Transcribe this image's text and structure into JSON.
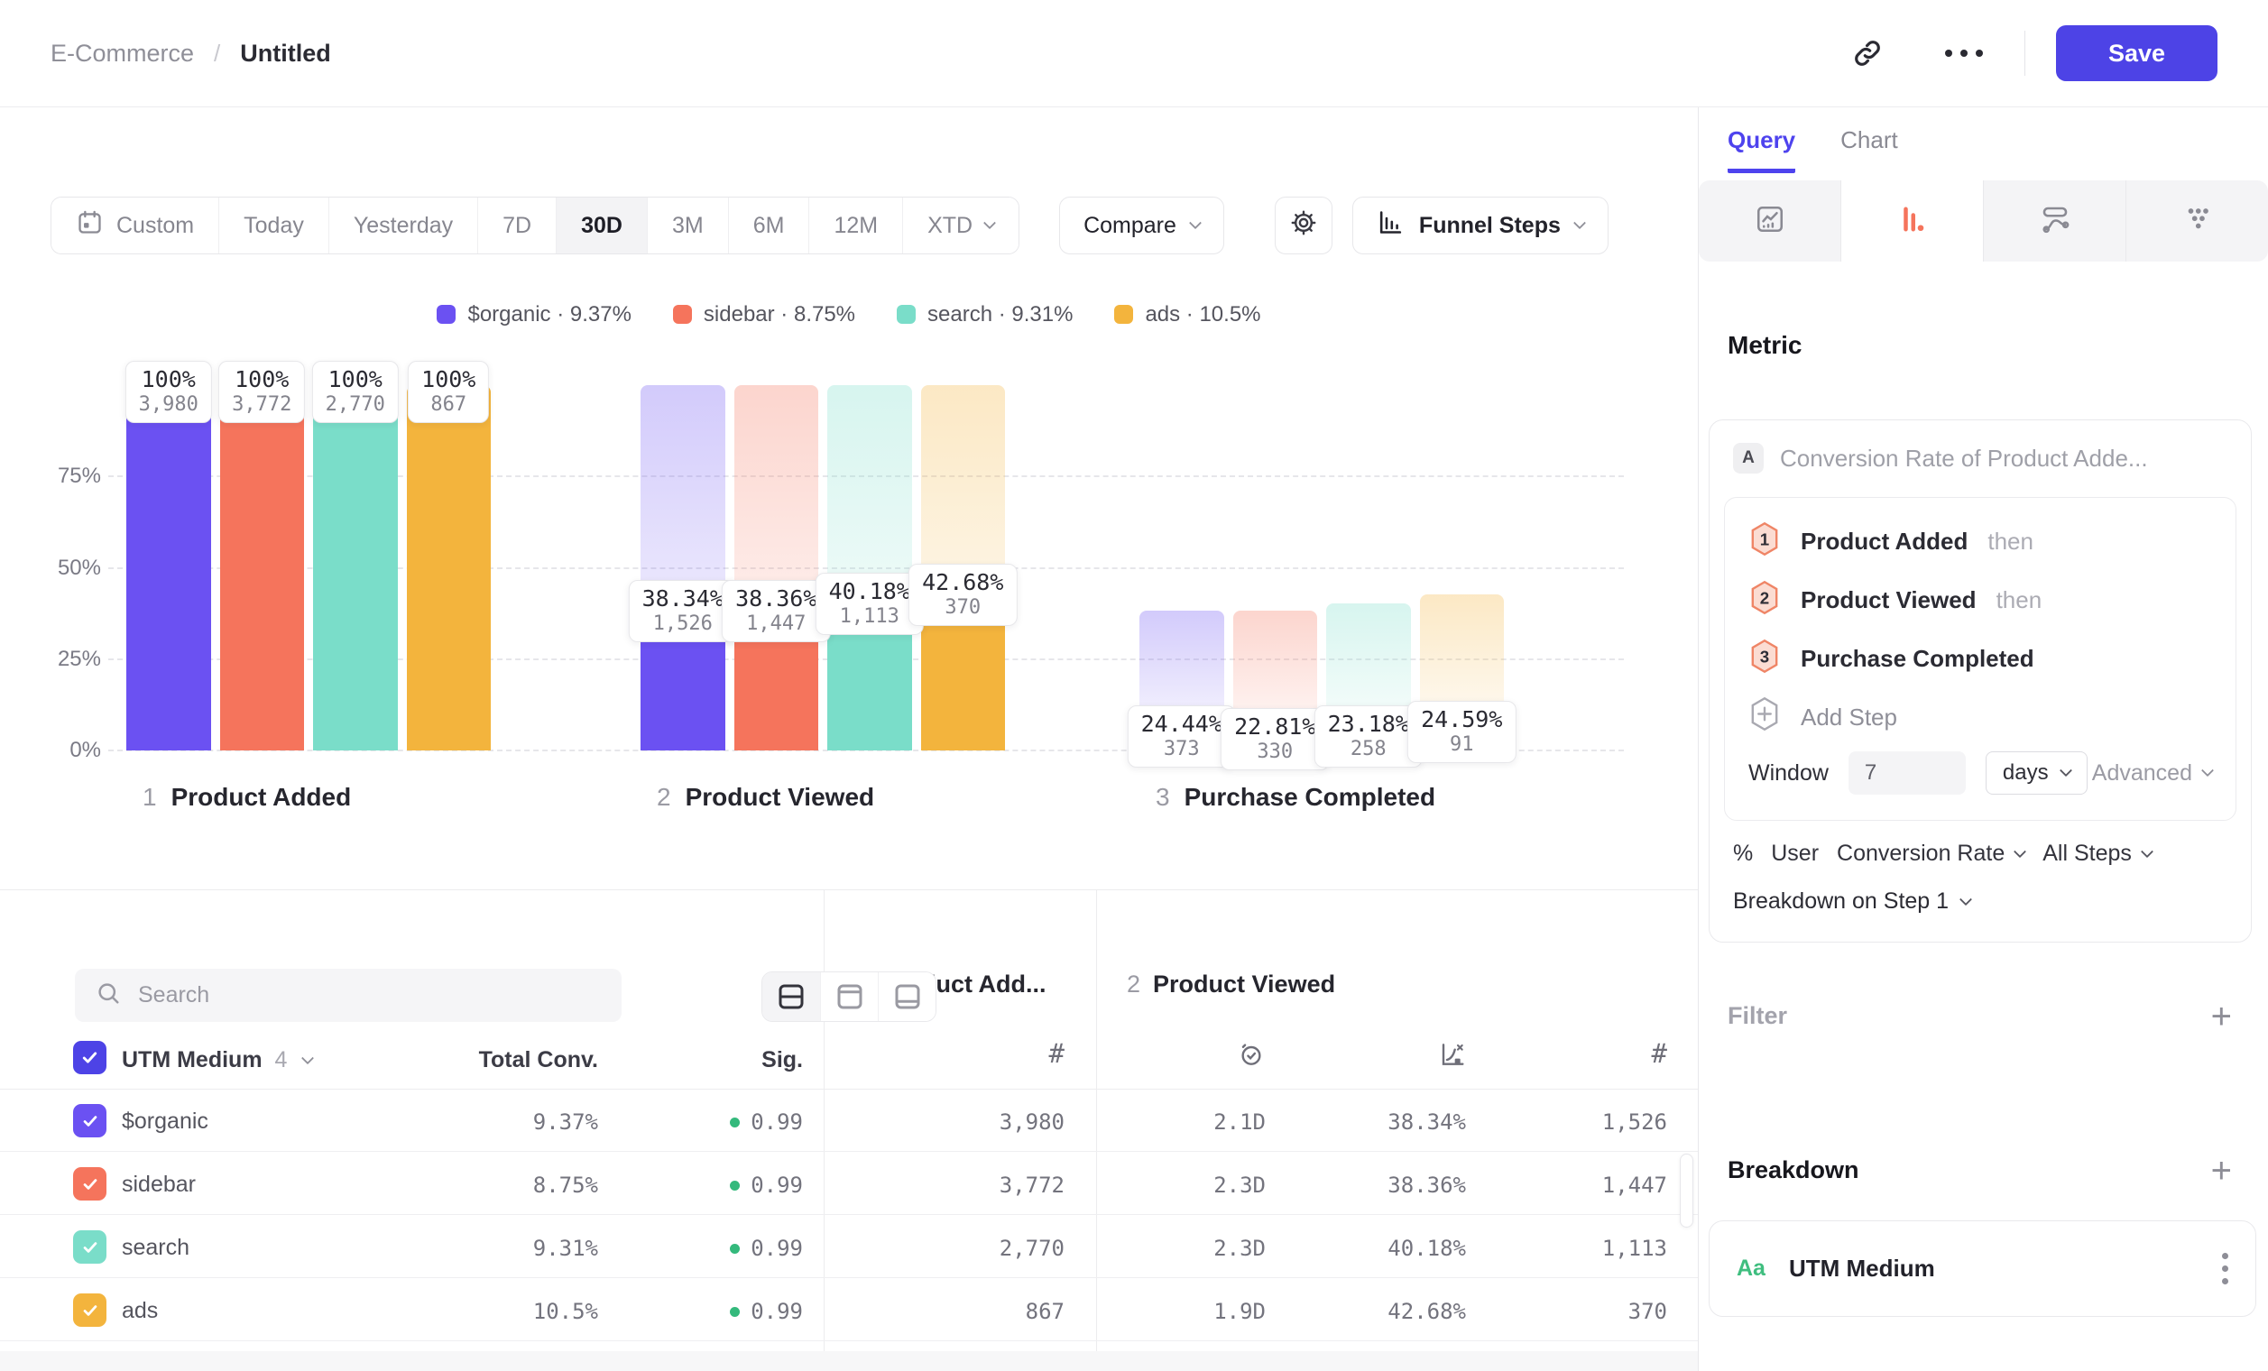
{
  "colors": {
    "accent": "#4D43E6",
    "coral": "#F5745C",
    "green_dot": "#34B97C",
    "aa_green": "#3FBE7F"
  },
  "header": {
    "breadcrumb": {
      "workspace": "E-Commerce",
      "separator": "/",
      "page": "Untitled"
    },
    "save_label": "Save"
  },
  "toolbar": {
    "ranges": [
      {
        "label": "Custom",
        "icon": "calendar-icon",
        "active": false,
        "caret": false
      },
      {
        "label": "Today",
        "active": false,
        "caret": false
      },
      {
        "label": "Yesterday",
        "active": false,
        "caret": false
      },
      {
        "label": "7D",
        "active": false,
        "caret": false
      },
      {
        "label": "30D",
        "active": true,
        "caret": false
      },
      {
        "label": "3M",
        "active": false,
        "caret": false
      },
      {
        "label": "6M",
        "active": false,
        "caret": false
      },
      {
        "label": "12M",
        "active": false,
        "caret": false
      },
      {
        "label": "XTD",
        "active": false,
        "caret": true
      }
    ],
    "compare_label": "Compare",
    "chart_picker_label": "Funnel Steps"
  },
  "legend": {
    "items": [
      {
        "label": "$organic · 9.37%",
        "color": "#6B51F2"
      },
      {
        "label": "sidebar · 8.75%",
        "color": "#F5745C"
      },
      {
        "label": "search · 9.31%",
        "color": "#7ADDC9"
      },
      {
        "label": "ads · 10.5%",
        "color": "#F3B43D"
      }
    ]
  },
  "chart_data": {
    "type": "bar",
    "subtype": "funnel-steps",
    "steps": [
      {
        "num": "1",
        "name": "Product Added"
      },
      {
        "num": "2",
        "name": "Product Viewed"
      },
      {
        "num": "3",
        "name": "Purchase Completed"
      }
    ],
    "yticks": [
      {
        "label": "75%",
        "pct": 75
      },
      {
        "label": "50%",
        "pct": 50
      },
      {
        "label": "25%",
        "pct": 25
      },
      {
        "label": "0%",
        "pct": 0
      }
    ],
    "ylim": [
      0,
      100
    ],
    "grid": "dashed-horizontal",
    "series": [
      {
        "name": "$organic",
        "color": "#6B51F2",
        "counts": [
          3980,
          1526,
          373
        ],
        "count_labels": [
          "3,980",
          "1,526",
          "373"
        ],
        "pct_labels": [
          "100%",
          "38.34%",
          "24.44%"
        ],
        "overall_pct": [
          100,
          38.34,
          9.37
        ]
      },
      {
        "name": "sidebar",
        "color": "#F5745C",
        "counts": [
          3772,
          1447,
          330
        ],
        "count_labels": [
          "3,772",
          "1,447",
          "330"
        ],
        "pct_labels": [
          "100%",
          "38.36%",
          "22.81%"
        ],
        "overall_pct": [
          100,
          38.36,
          8.75
        ]
      },
      {
        "name": "search",
        "color": "#7ADDC9",
        "counts": [
          2770,
          1113,
          258
        ],
        "count_labels": [
          "2,770",
          "1,113",
          "258"
        ],
        "pct_labels": [
          "100%",
          "40.18%",
          "23.18%"
        ],
        "overall_pct": [
          100,
          40.18,
          9.31
        ]
      },
      {
        "name": "ads",
        "color": "#F3B43D",
        "counts": [
          867,
          370,
          91
        ],
        "count_labels": [
          "867",
          "370",
          "91"
        ],
        "pct_labels": [
          "100%",
          "42.68%",
          "24.59%"
        ],
        "overall_pct": [
          100,
          42.68,
          10.5
        ]
      }
    ]
  },
  "table": {
    "search_placeholder": "Search",
    "group_header": {
      "title": "UTM Medium",
      "count": "4"
    },
    "total_col": "Total Conv.",
    "sig_col": "Sig.",
    "step_groups": [
      {
        "num": "1",
        "name": "Product Add...",
        "icons": [
          "hash-icon"
        ]
      },
      {
        "num": "2",
        "name": "Product Viewed",
        "icons": [
          "clock-check-icon",
          "conversion-chart-icon",
          "hash-icon"
        ]
      }
    ],
    "rows": [
      {
        "name": "$organic",
        "color": "#6B51F2",
        "total": "9.37%",
        "sig": "0.99",
        "s1_count": "3,980",
        "time": "2.1D",
        "conv": "38.34%",
        "s2_count": "1,526"
      },
      {
        "name": "sidebar",
        "color": "#F5745C",
        "total": "8.75%",
        "sig": "0.99",
        "s1_count": "3,772",
        "time": "2.3D",
        "conv": "38.36%",
        "s2_count": "1,447"
      },
      {
        "name": "search",
        "color": "#7ADDC9",
        "total": "9.31%",
        "sig": "0.99",
        "s1_count": "2,770",
        "time": "2.3D",
        "conv": "40.18%",
        "s2_count": "1,113"
      },
      {
        "name": "ads",
        "color": "#F3B43D",
        "total": "10.5%",
        "sig": "0.99",
        "s1_count": "867",
        "time": "1.9D",
        "conv": "42.68%",
        "s2_count": "370"
      }
    ]
  },
  "panel": {
    "tabs": [
      {
        "label": "Query",
        "active": true
      },
      {
        "label": "Chart",
        "active": false
      }
    ],
    "chart_types": [
      {
        "icon": "line-chart-icon",
        "active": false
      },
      {
        "icon": "funnel-chart-icon",
        "active": true
      },
      {
        "icon": "flow-chart-icon",
        "active": false
      },
      {
        "icon": "dots-grid-icon",
        "active": false
      }
    ],
    "metric_title": "Metric",
    "group_badge": "A",
    "metric_name": "Conversion Rate of Product Adde...",
    "steps": [
      {
        "num": "1",
        "name": "Product Added",
        "suffix": "then"
      },
      {
        "num": "2",
        "name": "Product Viewed",
        "suffix": "then"
      },
      {
        "num": "3",
        "name": "Purchase Completed",
        "suffix": ""
      }
    ],
    "add_step_label": "Add Step",
    "window": {
      "label": "Window",
      "value": "7",
      "unit": "days",
      "advanced": "Advanced"
    },
    "measure_tokens": [
      {
        "label": "%",
        "caret": false
      },
      {
        "label": "User",
        "caret": false
      },
      {
        "label": "Conversion Rate",
        "caret": true
      },
      {
        "label": "All Steps",
        "caret": true
      }
    ],
    "breakdown_on": "Breakdown on Step 1",
    "filter_title": "Filter",
    "breakdown_title": "Breakdown",
    "breakdown_item": {
      "type_badge": "Aa",
      "name": "UTM Medium"
    }
  }
}
